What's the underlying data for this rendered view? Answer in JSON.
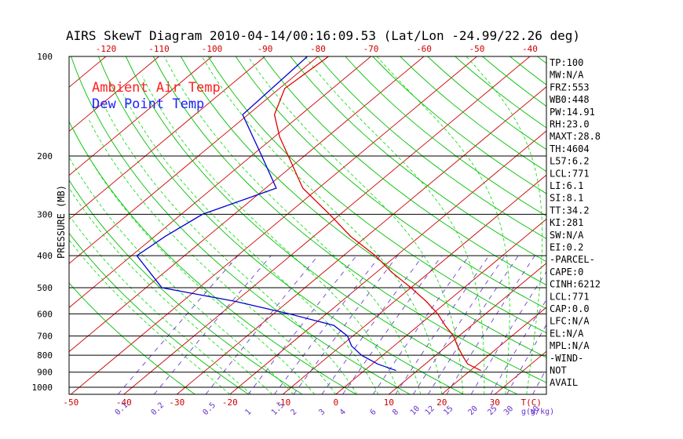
{
  "title": "AIRS SkewT Diagram 2010-04-14/00:16:09.53 (Lat/Lon -24.99/22.26 deg)",
  "colors": {
    "ambient": "#e00000",
    "dewpoint": "#0000d0",
    "isotherm": "#cc0000",
    "dry_adiabat": "#00c000",
    "moist_adiabat": "#00dd00",
    "mixing_ratio": "#7040d0",
    "isobar": "#000000"
  },
  "chart_data": {
    "type": "line",
    "title": "AIRS SkewT Diagram 2010-04-14/00:16:09.53 (Lat/Lon -24.99/22.26 deg)",
    "ylabel": "PRESSURE (MB)",
    "xlabel_bottom": "T(C)",
    "mixing_ratio_unit": "g(g/kg)",
    "y_scale": "log",
    "ylim": [
      1050,
      100
    ],
    "pressure_ticks": [
      100,
      200,
      300,
      400,
      500,
      600,
      700,
      800,
      900,
      1000
    ],
    "top_temp_ticks": [
      -120,
      -110,
      -100,
      -90,
      -80,
      -70,
      -60,
      -50,
      -40
    ],
    "bottom_temp_ticks": [
      -50,
      -40,
      -30,
      -20,
      -10,
      0,
      10,
      20,
      30
    ],
    "mixing_ratio_ticks": [
      "0.1",
      "0.2",
      "0.5",
      "1",
      "1.5",
      "2",
      "3",
      "4",
      "6",
      "8",
      "10",
      "12",
      "15",
      "20",
      "25",
      "30",
      "40"
    ],
    "legend": [
      "Ambient Air Temp",
      "Dew Point Temp"
    ],
    "series": [
      {
        "name": "Ambient Air Temp",
        "points": [
          {
            "p": 100,
            "t": -78
          },
          {
            "p": 125,
            "t": -79
          },
          {
            "p": 150,
            "t": -75
          },
          {
            "p": 175,
            "t": -69
          },
          {
            "p": 200,
            "t": -63
          },
          {
            "p": 250,
            "t": -53
          },
          {
            "p": 300,
            "t": -42
          },
          {
            "p": 350,
            "t": -33
          },
          {
            "p": 400,
            "t": -24
          },
          {
            "p": 450,
            "t": -17
          },
          {
            "p": 500,
            "t": -10
          },
          {
            "p": 550,
            "t": -4
          },
          {
            "p": 600,
            "t": 1
          },
          {
            "p": 650,
            "t": 5
          },
          {
            "p": 700,
            "t": 9
          },
          {
            "p": 750,
            "t": 12
          },
          {
            "p": 800,
            "t": 15
          },
          {
            "p": 850,
            "t": 18
          },
          {
            "p": 890,
            "t": 22
          }
        ]
      },
      {
        "name": "Dew Point Temp",
        "points": [
          {
            "p": 100,
            "t": -82
          },
          {
            "p": 150,
            "t": -81
          },
          {
            "p": 200,
            "t": -68
          },
          {
            "p": 250,
            "t": -58
          },
          {
            "p": 300,
            "t": -66
          },
          {
            "p": 350,
            "t": -68
          },
          {
            "p": 400,
            "t": -69
          },
          {
            "p": 500,
            "t": -57
          },
          {
            "p": 550,
            "t": -40
          },
          {
            "p": 600,
            "t": -27
          },
          {
            "p": 650,
            "t": -16
          },
          {
            "p": 700,
            "t": -11
          },
          {
            "p": 750,
            "t": -8
          },
          {
            "p": 800,
            "t": -4
          },
          {
            "p": 850,
            "t": 1
          },
          {
            "p": 890,
            "t": 6
          }
        ]
      }
    ]
  },
  "indices": [
    "TP:100",
    "MW:N/A",
    "FRZ:553",
    "WB0:448",
    "PW:14.91",
    "RH:23.0",
    "MAXT:28.8",
    "TH:4604",
    "L57:6.2",
    "LCL:771",
    "LI:6.1",
    "SI:8.1",
    "TT:34.2",
    "KI:281",
    "SW:N/A",
    "EI:0.2",
    "-PARCEL-",
    "CAPE:0",
    "CINH:6212",
    "LCL:771",
    "CAP:0.0",
    "LFC:N/A",
    "EL:N/A",
    "MPL:N/A",
    "-WIND-",
    "NOT",
    "AVAIL"
  ]
}
